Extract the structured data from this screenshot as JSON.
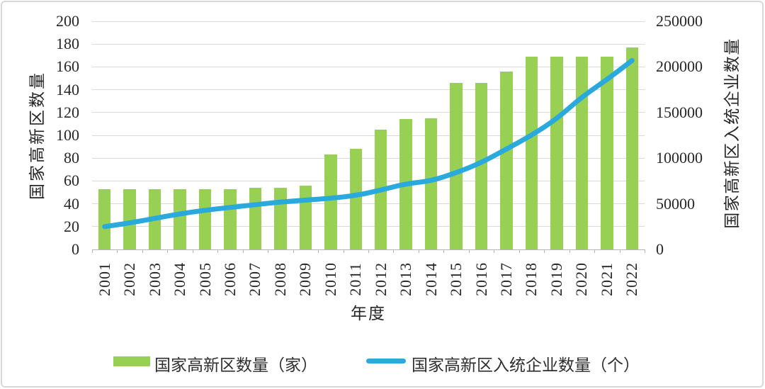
{
  "chart_data": {
    "type": "combo-bar-line",
    "categories": [
      "2001",
      "2002",
      "2003",
      "2004",
      "2005",
      "2006",
      "2007",
      "2008",
      "2009",
      "2010",
      "2011",
      "2012",
      "2013",
      "2014",
      "2015",
      "2016",
      "2017",
      "2018",
      "2019",
      "2020",
      "2021",
      "2022"
    ],
    "series": [
      {
        "name": "国家高新区数量",
        "legend_label": "国家高新区数量（家）",
        "type": "bar",
        "axis": "left",
        "color": "#97d052",
        "values": [
          53,
          53,
          53,
          53,
          53,
          53,
          54,
          54,
          56,
          83,
          88,
          105,
          114,
          115,
          146,
          146,
          156,
          169,
          169,
          169,
          169,
          177
        ]
      },
      {
        "name": "国家高新区入统企业数量",
        "legend_label": "国家高新区入统企业数量（个）",
        "type": "line",
        "axis": "right",
        "color": "#2aa9dc",
        "values": [
          25000,
          29000,
          34000,
          39000,
          43000,
          46000,
          49000,
          52000,
          54000,
          56000,
          59000,
          65000,
          72000,
          75000,
          84000,
          95000,
          110000,
          125000,
          143000,
          167000,
          186000,
          207000
        ]
      }
    ],
    "xlabel": "年度",
    "left_axis": {
      "title": "国家高新区数量",
      "min": 0,
      "max": 200,
      "step": 20,
      "ticks": [
        0,
        20,
        40,
        60,
        80,
        100,
        120,
        140,
        160,
        180,
        200
      ]
    },
    "right_axis": {
      "title": "国家高新区入统企业数量",
      "min": 0,
      "max": 250000,
      "step": 50000,
      "ticks": [
        0,
        50000,
        100000,
        150000,
        200000,
        250000
      ]
    },
    "grid": true,
    "grid_color": "#d9d9d9",
    "legend_position": "bottom"
  }
}
